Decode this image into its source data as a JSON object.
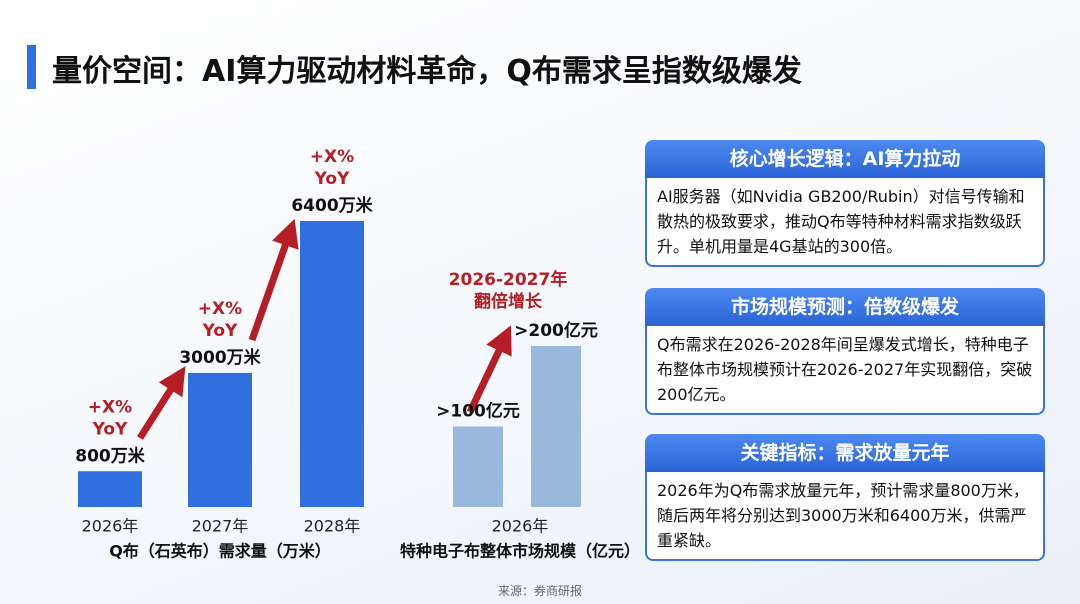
{
  "title": "量价空间：AI算力驱动材料革命，Q布需求呈指数级爆发",
  "chart_data": [
    {
      "type": "bar",
      "xlabel": "Q布（石英布）需求量（万米）",
      "categories": [
        "2026年",
        "2027年",
        "2028年"
      ],
      "values": [
        800,
        3000,
        6400
      ],
      "value_labels": [
        "800万米",
        "3000万米",
        "6400万米"
      ],
      "color": "#2f6fe0",
      "annotations": [
        [
          "+X%",
          "YoY"
        ],
        [
          "+X%",
          "YoY"
        ],
        [
          "+X%",
          "YoY"
        ]
      ]
    },
    {
      "type": "bar",
      "xlabel": "特种电子布整体市场规模（亿元）",
      "categories": [
        "2026年"
      ],
      "series": [
        {
          "color": "#9ab8dc",
          "values": [
            100
          ],
          "value_labels": [
            ">100亿元"
          ]
        },
        {
          "color": "#9ab8dc",
          "values": [
            200
          ],
          "value_labels": [
            ">200亿元"
          ]
        }
      ],
      "annotations": [
        [
          "2026-2027年",
          "翻倍增长"
        ]
      ]
    }
  ],
  "cards": [
    {
      "title": "核心增长逻辑：AI算力拉动",
      "body": "AI服务器（如Nvidia GB200/Rubin）对信号传输和散热的极致要求，推动Q布等特种材料需求指数级跃升。单机用量是4G基站的300倍。"
    },
    {
      "title": "市场规模预测：倍数级爆发",
      "body": "Q布需求在2026-2028年间呈爆发式增长，特种电子布整体市场规模预计在2026-2027年实现翻倍，突破200亿元。"
    },
    {
      "title": "关键指标：需求放量元年",
      "body": "2026年为Q布需求放量元年，预计需求量800万米，随后两年将分别达到3000万米和6400万米，供需严重紧缺。"
    }
  ],
  "source": "来源：券商研报"
}
